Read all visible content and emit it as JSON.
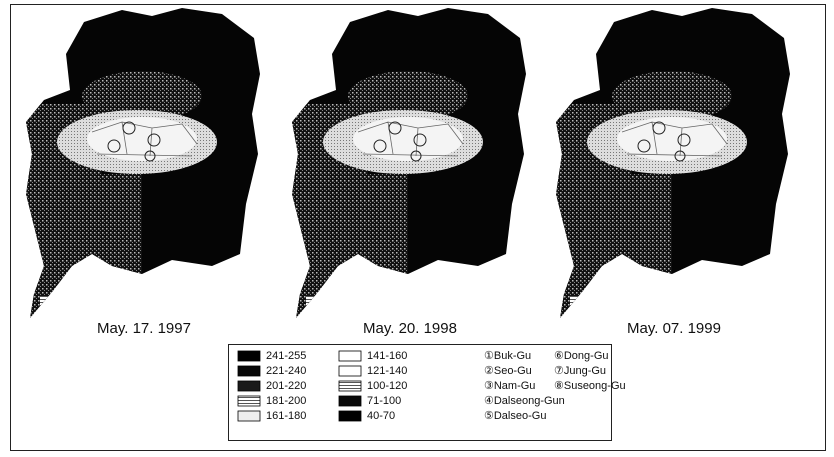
{
  "panels": [
    {
      "caption": "May. 17. 1997"
    },
    {
      "caption": "May. 20. 1998"
    },
    {
      "caption": "May. 07. 1999"
    }
  ],
  "legend": {
    "classes": [
      {
        "range": "241-255",
        "color": "#000000"
      },
      {
        "range": "221-240",
        "color": "#080808"
      },
      {
        "range": "201-220",
        "color": "#1a1a1a"
      },
      {
        "range": "181-200",
        "color": "#9a9a9a"
      },
      {
        "range": "161-180",
        "color": "#eeeeee"
      },
      {
        "range": "141-160",
        "color": "#ffffff"
      },
      {
        "range": "121-140",
        "color": "#ffffff"
      },
      {
        "range": "100-120",
        "color": "#b5b5b5"
      },
      {
        "range": "71-100",
        "color": "#0a0a0a"
      },
      {
        "range": "40-70",
        "color": "#000000"
      }
    ]
  },
  "districts": [
    "①Buk-Gu",
    "②Seo-Gu",
    "③Nam-Gu",
    "④Dalseong-Gun",
    "⑤Dalseo-Gu",
    "⑥Dong-Gu",
    "⑦Jung-Gu",
    "⑧Suseong-Gu"
  ]
}
